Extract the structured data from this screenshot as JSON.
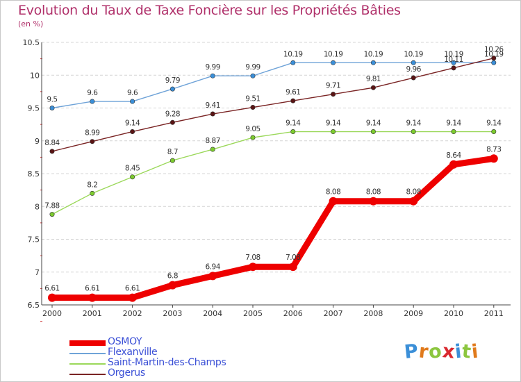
{
  "title": "Evolution du Taux de Taxe Foncière sur les Propriétés Bâties",
  "unit_label": "(en %)",
  "logo": {
    "letters": [
      "P",
      "r",
      "o",
      "x",
      "i",
      "t",
      "i"
    ],
    "colors": [
      "#3b8fd8",
      "#e07a1c",
      "#8cc63f",
      "#d9282f",
      "#3b8fd8",
      "#8cc63f",
      "#e07a1c"
    ]
  },
  "chart_data": {
    "type": "line",
    "title": "Evolution du Taux de Taxe Foncière sur les Propriétés Bâties",
    "ylabel": "(en %)",
    "xlabel": "",
    "categories": [
      "2000",
      "2001",
      "2002",
      "2003",
      "2004",
      "2005",
      "2006",
      "2007",
      "2008",
      "2009",
      "2010",
      "2011"
    ],
    "ylim": [
      6.5,
      10.5
    ],
    "yticks": [
      "6.5",
      "7",
      "7.5",
      "8",
      "8.5",
      "9",
      "9.5",
      "10",
      "10.5"
    ],
    "grid": "horizontal dashed",
    "series": [
      {
        "name": "Flexanville",
        "color": "#6fa3d8",
        "marker": "#3b8fd8",
        "values": [
          9.5,
          9.6,
          9.6,
          9.79,
          9.99,
          9.99,
          10.19,
          10.19,
          10.19,
          10.19,
          10.19,
          10.19
        ],
        "labels": [
          "9.5",
          "9.6",
          "9.6",
          "9.79",
          "9.99",
          "9.99",
          "10.19",
          "10.19",
          "10.19",
          "10.19",
          "10.19",
          "10.19"
        ]
      },
      {
        "name": "Saint-Martin-des-Champs",
        "color": "#9bd85a",
        "marker": "#7ccb2e",
        "values": [
          7.88,
          8.2,
          8.45,
          8.7,
          8.87,
          9.05,
          9.14,
          9.14,
          9.14,
          9.14,
          9.14,
          9.14
        ],
        "labels": [
          "7.88",
          "8.2",
          "8.45",
          "8.7",
          "8.87",
          "9.05",
          "9.14",
          "9.14",
          "9.14",
          "9.14",
          "9.14",
          "9.14"
        ]
      },
      {
        "name": "Orgerus",
        "color": "#7a2424",
        "marker": "#5a1414",
        "values": [
          8.84,
          8.99,
          9.14,
          9.28,
          9.41,
          9.51,
          9.61,
          9.71,
          9.81,
          9.96,
          10.11,
          10.26
        ],
        "labels": [
          "8.84",
          "8.99",
          "9.14",
          "9.28",
          "9.41",
          "9.51",
          "9.61",
          "9.71",
          "9.81",
          "9.96",
          "10.11",
          "10.26"
        ]
      },
      {
        "name": "OSMOY",
        "color": "#ee0000",
        "marker": "#ee0000",
        "bold": true,
        "values": [
          6.61,
          6.61,
          6.61,
          6.8,
          6.94,
          7.08,
          7.08,
          8.08,
          8.08,
          8.08,
          8.64,
          8.73
        ],
        "labels": [
          "6.61",
          "6.61",
          "6.61",
          "6.8",
          "6.94",
          "7.08",
          "7.08",
          "8.08",
          "8.08",
          "8.08",
          "8.64",
          "8.73"
        ]
      }
    ],
    "legend": [
      "OSMOY",
      "Flexanville",
      "Saint-Martin-des-Champs",
      "Orgerus"
    ]
  }
}
